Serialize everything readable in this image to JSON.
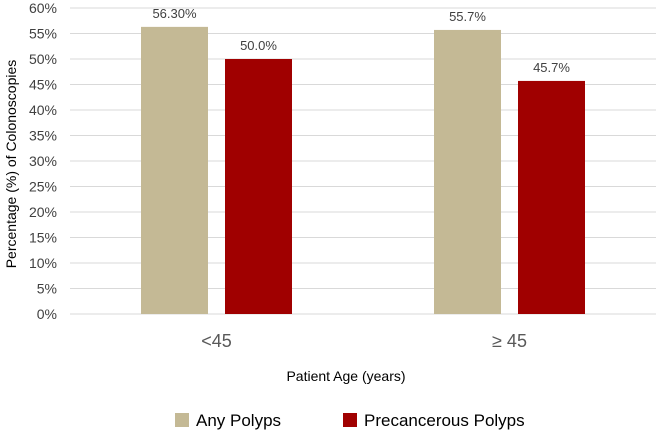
{
  "chart_data": {
    "type": "bar",
    "title": "",
    "xlabel": "Patient Age (years)",
    "ylabel": "Percentage (%) of Colonoscopies",
    "ylim": [
      0,
      60
    ],
    "yticks": [
      "0%",
      "5%",
      "10%",
      "15%",
      "20%",
      "25%",
      "30%",
      "35%",
      "40%",
      "45%",
      "50%",
      "55%",
      "60%"
    ],
    "categories": [
      "<45",
      "≥ 45"
    ],
    "grid": true,
    "legend": "bottom",
    "series": [
      {
        "name": "Any Polyps",
        "color": "#c4b995",
        "values": [
          56.3,
          55.7
        ],
        "labels": [
          "56.30%",
          "55.7%"
        ]
      },
      {
        "name": "Precancerous Polyps",
        "color": "#a00000",
        "values": [
          50.0,
          45.7
        ],
        "labels": [
          "50.0%",
          "45.7%"
        ]
      }
    ]
  }
}
